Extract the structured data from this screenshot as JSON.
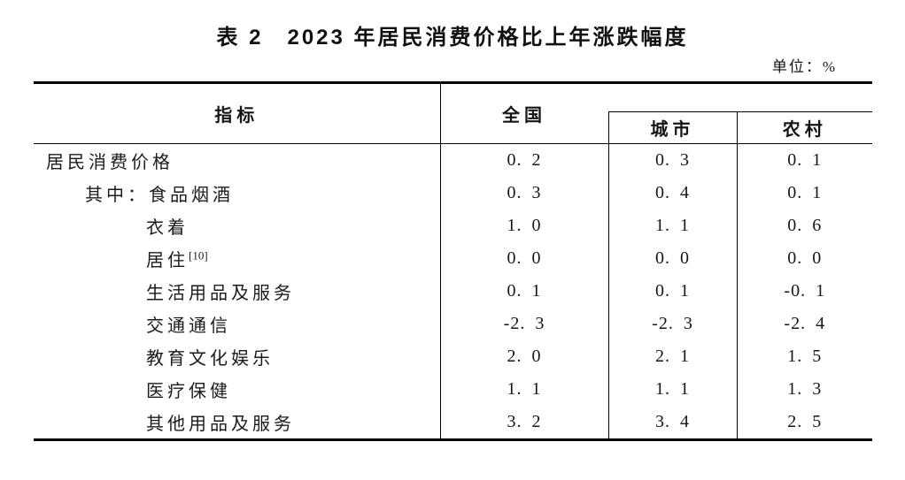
{
  "page": {
    "title": "表 2　2023 年居民消费价格比上年涨跌幅度",
    "unit_label": "单位：%"
  },
  "table": {
    "header": {
      "indicator": "指标",
      "national": "全国",
      "urban": "城市",
      "rural": "农村"
    },
    "rows": [
      {
        "label": "居民消费价格",
        "indent": 0,
        "national": "0.2",
        "urban": "0.3",
        "rural": "0.1"
      },
      {
        "label": "其中：食品烟酒",
        "indent": 1,
        "national": "0.3",
        "urban": "0.4",
        "rural": "0.1"
      },
      {
        "label": "衣着",
        "indent": 2,
        "national": "1.0",
        "urban": "1.1",
        "rural": "0.6"
      },
      {
        "label": "居住",
        "sup": "[10]",
        "indent": 2,
        "national": "0.0",
        "urban": "0.0",
        "rural": "0.0"
      },
      {
        "label": "生活用品及服务",
        "indent": 2,
        "national": "0.1",
        "urban": "0.1",
        "rural": "-0.1"
      },
      {
        "label": "交通通信",
        "indent": 2,
        "national": "-2.3",
        "urban": "-2.3",
        "rural": "-2.4"
      },
      {
        "label": "教育文化娱乐",
        "indent": 2,
        "national": "2.0",
        "urban": "2.1",
        "rural": "1.5"
      },
      {
        "label": "医疗保健",
        "indent": 2,
        "national": "1.1",
        "urban": "1.1",
        "rural": "1.3"
      },
      {
        "label": "其他用品及服务",
        "indent": 2,
        "national": "3.2",
        "urban": "3.4",
        "rural": "2.5"
      }
    ]
  },
  "colors": {
    "background": "#ffffff",
    "text": "#1b1b1b",
    "border": "#000000"
  }
}
